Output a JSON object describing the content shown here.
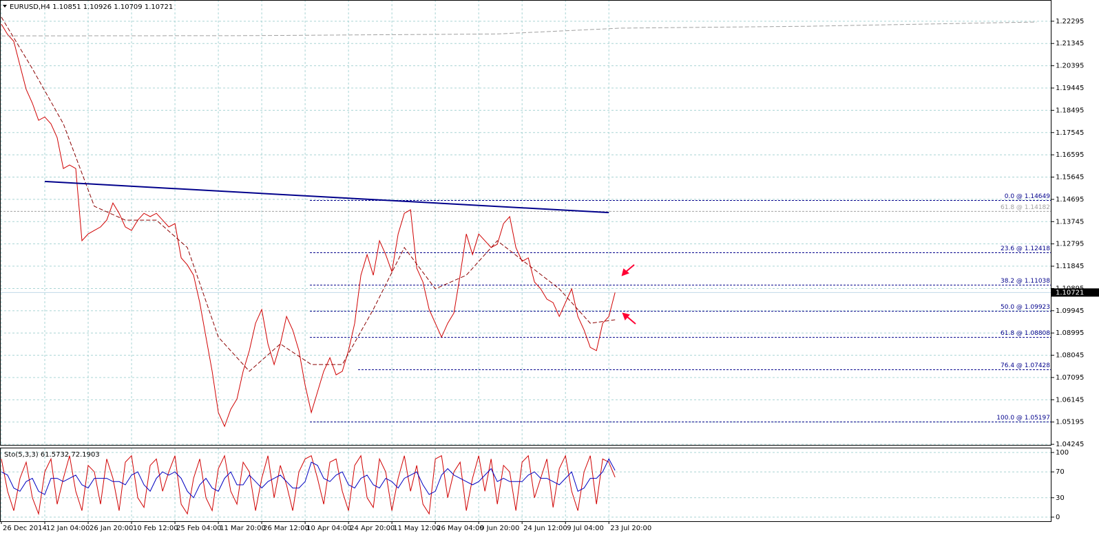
{
  "chart_data": [
    {
      "type": "line",
      "title": "EURUSD,H4",
      "ohlc": [
        1.10851,
        1.10926,
        1.10709,
        1.10721
      ],
      "x": [
        0,
        1,
        2,
        3,
        4,
        5,
        6,
        7,
        8,
        9,
        10,
        11,
        12,
        13,
        14,
        15,
        16,
        17,
        18,
        19,
        20,
        21,
        22,
        23,
        24,
        25,
        26,
        27,
        28,
        29,
        30,
        31,
        32,
        33,
        34,
        35,
        36,
        37,
        38,
        39,
        40,
        41,
        42,
        43,
        44,
        45,
        46,
        47,
        48,
        49,
        50,
        51,
        52,
        53,
        54,
        55,
        56,
        57,
        58,
        59,
        60,
        61,
        62,
        63,
        64,
        65,
        66,
        67,
        68,
        69,
        70,
        71,
        72,
        73,
        74,
        75,
        76,
        77,
        78,
        79,
        80,
        81,
        82,
        83,
        84,
        85,
        86,
        87,
        88,
        89,
        90,
        91,
        92,
        93,
        94,
        95,
        96,
        97,
        98,
        99
      ],
      "series": [
        {
          "color": "#d00000",
          "values": [
            1.2217,
            1.2173,
            1.2144,
            1.2041,
            1.1939,
            1.188,
            1.1807,
            1.1821,
            1.1792,
            1.1733,
            1.1601,
            1.1616,
            1.1601,
            1.1293,
            1.1322,
            1.1337,
            1.1352,
            1.1381,
            1.1454,
            1.141,
            1.1352,
            1.1337,
            1.1381,
            1.141,
            1.1396,
            1.141,
            1.1381,
            1.1352,
            1.1366,
            1.122,
            1.119,
            1.1146,
            1.1029,
            1.0882,
            1.0736,
            1.056,
            1.0501,
            1.0574,
            1.0618,
            1.0736,
            1.0824,
            1.0941,
            1.1,
            1.0853,
            1.0765,
            1.0853,
            1.097,
            1.0912,
            1.0824,
            1.0677,
            1.056,
            1.0648,
            1.0736,
            1.0794,
            1.0721,
            1.0736,
            1.0824,
            1.0941,
            1.1146,
            1.1234,
            1.1146,
            1.1293,
            1.1234,
            1.1161,
            1.1322,
            1.141,
            1.1425,
            1.1176,
            1.1117,
            1.1,
            1.0941,
            1.0882,
            1.0941,
            1.0985,
            1.1146,
            1.1322,
            1.1234,
            1.1322,
            1.1293,
            1.1264,
            1.1278,
            1.1366,
            1.1396,
            1.1264,
            1.1205,
            1.122,
            1.1117,
            1.1088,
            1.1044,
            1.1029,
            1.097,
            1.1029,
            1.1088,
            1.097,
            1.0912,
            1.0838,
            1.0824,
            1.0941,
            1.097,
            1.10721
          ]
        },
        {
          "color": "#8b0000",
          "dash": true,
          "x": [
            0,
            5,
            10,
            15,
            20,
            25,
            30,
            35,
            40,
            45,
            50,
            55,
            60,
            65,
            70,
            75,
            80,
            85,
            90,
            95,
            99
          ],
          "values": [
            1.2247,
            1.2027,
            1.1792,
            1.144,
            1.1381,
            1.1381,
            1.1264,
            1.0882,
            1.0736,
            1.0853,
            1.0765,
            1.0765,
            1.1,
            1.1264,
            1.1088,
            1.1146,
            1.1293,
            1.119,
            1.1088,
            1.0941,
            1.0956
          ]
        },
        {
          "color": "#a0a0a0",
          "dash": true,
          "x": [
            0,
            40,
            80,
            100,
            130,
            167
          ],
          "values": [
            1.2167,
            1.2168,
            1.2175,
            1.22,
            1.2208,
            1.2226
          ]
        }
      ],
      "trendline": {
        "color": "#00008b",
        "x": [
          7,
          98
        ],
        "values": [
          1.1546,
          1.1413
        ]
      },
      "fib_levels": [
        {
          "value": 1.14649,
          "label": "0.0 @ 1.14649",
          "color": "#00008b"
        },
        {
          "value": 1.14182,
          "label": "61.8 @ 1.14182",
          "color": "#a0a0a0"
        },
        {
          "value": 1.12418,
          "label": "23.6 @ 1.12418",
          "color": "#00008b"
        },
        {
          "value": 1.11038,
          "label": "38.2 @ 1.11038",
          "color": "#00008b"
        },
        {
          "value": 1.09923,
          "label": "50.0 @ 1.09923",
          "color": "#00008b"
        },
        {
          "value": 1.08808,
          "label": "61.8 @ 1.08808",
          "color": "#00008b"
        },
        {
          "value": 1.07428,
          "label": "76.4 @ 1.07428",
          "color": "#00008b"
        },
        {
          "value": 1.05197,
          "label": "100.0 @ 1.05197",
          "color": "#00008b"
        }
      ],
      "xlim": [
        0,
        169.4
      ],
      "xticks": [
        {
          "value": 0,
          "label": "26 Dec 2014"
        },
        {
          "value": 7,
          "label": "12 Jan 04:00"
        },
        {
          "value": 14,
          "label": "26 Jan 20:00"
        },
        {
          "value": 21,
          "label": "10 Feb 12:00"
        },
        {
          "value": 28,
          "label": "25 Feb 04:00"
        },
        {
          "value": 35,
          "label": "11 Mar 20:00"
        },
        {
          "value": 42,
          "label": "26 Mar 12:00"
        },
        {
          "value": 49,
          "label": "10 Apr 04:00"
        },
        {
          "value": 56,
          "label": "24 Apr 20:00"
        },
        {
          "value": 63,
          "label": "11 May 12:00"
        },
        {
          "value": 70,
          "label": "26 May 04:00"
        },
        {
          "value": 77,
          "label": "9 Jun 20:00"
        },
        {
          "value": 84,
          "label": "24 Jun 12:00"
        },
        {
          "value": 91,
          "label": "9 Jul 04:00"
        },
        {
          "value": 98,
          "label": "23 Jul 20:00"
        }
      ],
      "ylim": [
        1.0419,
        1.232
      ],
      "yticks": [
        1.22295,
        1.21345,
        1.20395,
        1.19445,
        1.18495,
        1.17545,
        1.16595,
        1.15645,
        1.14695,
        1.13745,
        1.12795,
        1.11845,
        1.10895,
        1.09945,
        1.08995,
        1.08045,
        1.07095,
        1.06145,
        1.05195,
        1.04245
      ],
      "grid": true
    },
    {
      "type": "line",
      "title": "Sto(5,3,3)",
      "x": [
        0,
        1,
        2,
        3,
        4,
        5,
        6,
        7,
        8,
        9,
        10,
        11,
        12,
        13,
        14,
        15,
        16,
        17,
        18,
        19,
        20,
        21,
        22,
        23,
        24,
        25,
        26,
        27,
        28,
        29,
        30,
        31,
        32,
        33,
        34,
        35,
        36,
        37,
        38,
        39,
        40,
        41,
        42,
        43,
        44,
        45,
        46,
        47,
        48,
        49,
        50,
        51,
        52,
        53,
        54,
        55,
        56,
        57,
        58,
        59,
        60,
        61,
        62,
        63,
        64,
        65,
        66,
        67,
        68,
        69,
        70,
        71,
        72,
        73,
        74,
        75,
        76,
        77,
        78,
        79,
        80,
        81,
        82,
        83,
        84,
        85,
        86,
        87,
        88,
        89,
        90,
        91,
        92,
        93,
        94,
        95,
        96,
        97,
        98,
        99
      ],
      "series": [
        {
          "color": "#d00000",
          "values": [
            90,
            40,
            10,
            60,
            85,
            30,
            5,
            70,
            90,
            20,
            60,
            95,
            40,
            10,
            80,
            70,
            20,
            90,
            60,
            10,
            85,
            95,
            30,
            15,
            80,
            90,
            40,
            70,
            95,
            20,
            5,
            60,
            90,
            30,
            10,
            75,
            95,
            40,
            20,
            85,
            70,
            10,
            60,
            95,
            30,
            80,
            50,
            10,
            70,
            90,
            95,
            60,
            20,
            85,
            90,
            40,
            10,
            80,
            95,
            30,
            15,
            90,
            70,
            10,
            60,
            95,
            40,
            80,
            20,
            5,
            90,
            95,
            30,
            70,
            85,
            10,
            60,
            95,
            40,
            90,
            20,
            80,
            70,
            10,
            85,
            95,
            30,
            60,
            90,
            15,
            75,
            95,
            40,
            10,
            70,
            95,
            20,
            90,
            85,
            61.5732
          ]
        },
        {
          "color": "#0000c0",
          "values": [
            70,
            65,
            45,
            40,
            55,
            60,
            40,
            35,
            60,
            60,
            55,
            60,
            65,
            50,
            45,
            60,
            60,
            60,
            55,
            55,
            50,
            65,
            70,
            50,
            40,
            60,
            70,
            65,
            70,
            60,
            40,
            30,
            50,
            60,
            45,
            40,
            60,
            70,
            50,
            50,
            65,
            55,
            45,
            55,
            60,
            65,
            55,
            45,
            45,
            55,
            85,
            80,
            60,
            55,
            65,
            70,
            50,
            45,
            60,
            65,
            50,
            45,
            60,
            55,
            45,
            60,
            65,
            70,
            50,
            35,
            40,
            65,
            75,
            65,
            60,
            55,
            50,
            55,
            65,
            75,
            55,
            60,
            55,
            55,
            55,
            65,
            70,
            60,
            60,
            55,
            50,
            60,
            70,
            40,
            45,
            60,
            60,
            70,
            90,
            72.1903
          ]
        }
      ],
      "xlim": [
        0,
        169.4
      ],
      "ylim": [
        -6.4,
        106.4
      ],
      "yticks": [
        100,
        70,
        30,
        0
      ],
      "grid": true
    }
  ]
}
